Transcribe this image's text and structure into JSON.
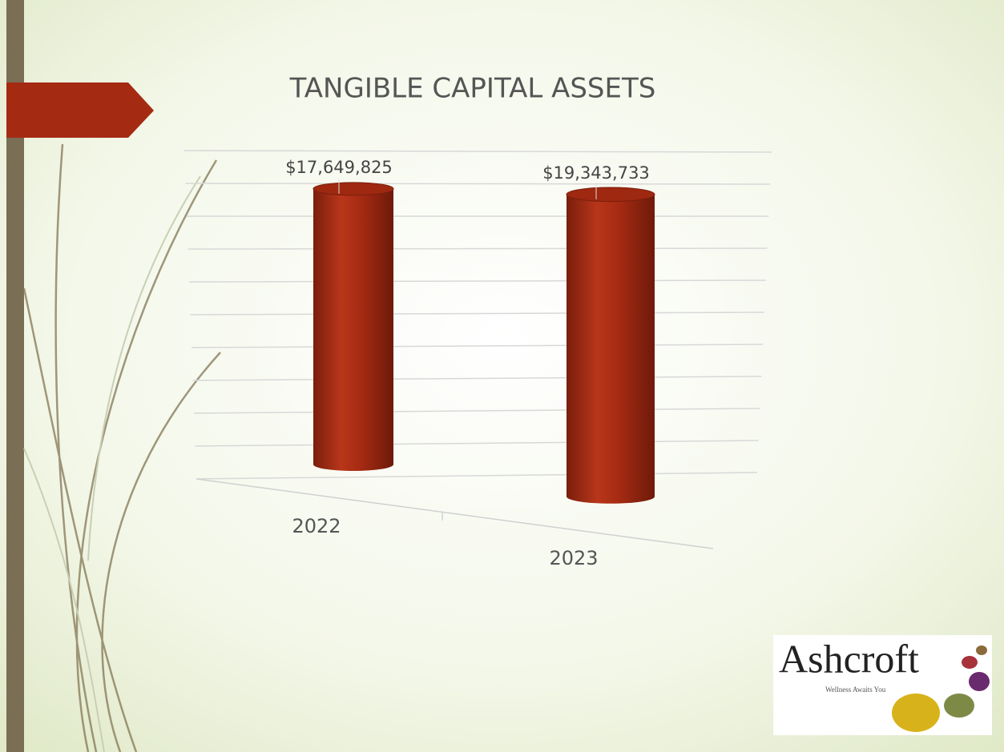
{
  "chart_data": {
    "type": "bar",
    "title": "TANGIBLE CAPITAL ASSETS",
    "categories": [
      "2022",
      "2023"
    ],
    "values": [
      17649825,
      19343733
    ],
    "value_labels": [
      "$17,649,825",
      "$19,343,733"
    ],
    "color": "#a52a12",
    "ylim": [
      0,
      20000000
    ],
    "grid": true
  },
  "logo": {
    "name": "Ashcroft",
    "tagline": "Wellness Awaits You"
  }
}
